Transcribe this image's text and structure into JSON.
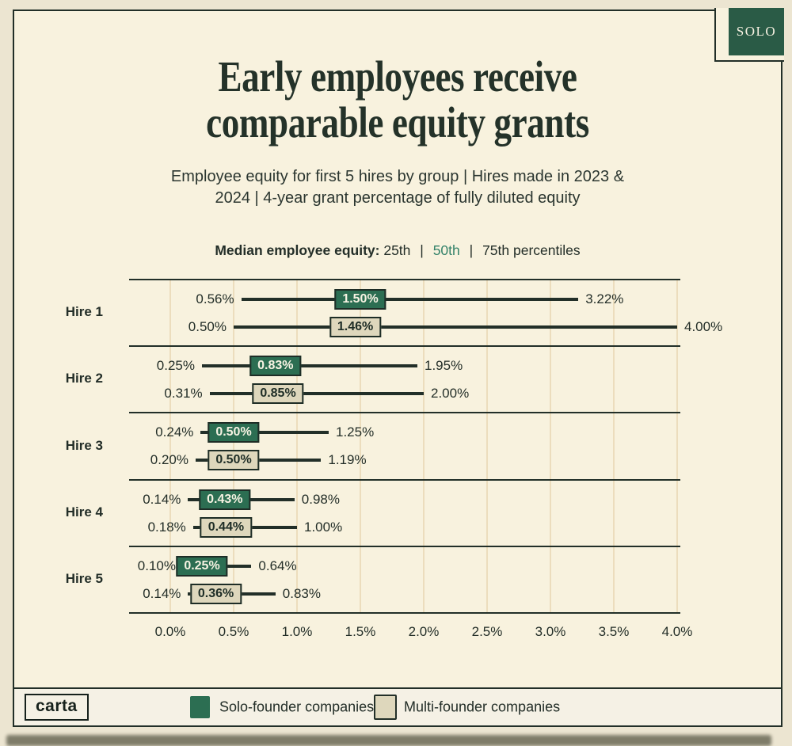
{
  "badge": {
    "label": "SOLO"
  },
  "header": {
    "title": "Early employees receive\ncomparable equity grants",
    "subtitle": "Employee equity for first 5 hires by group | Hires made in 2023 &\n2024 | 4-year grant percentage of fully diluted equity"
  },
  "percentile_note": {
    "label": "Median employee equity:",
    "p25": "25th",
    "p50": "50th",
    "p75": "75th percentiles",
    "separator": "|"
  },
  "chart_data": {
    "type": "horizontal percentile range chart (25th–50th–75th)",
    "xlim": [
      0,
      4
    ],
    "x_tick_labels": [
      "0.0%",
      "0.5%",
      "1.0%",
      "1.5%",
      "2.0%",
      "2.5%",
      "3.0%",
      "3.5%",
      "4.0%"
    ],
    "grid": "faint vertical gridlines every 0.5%",
    "series_names": [
      "Solo-founder companies",
      "Multi-founder companies"
    ],
    "groups": [
      {
        "label": "Hire 1",
        "rows": [
          {
            "series": "solo",
            "p25": 0.56,
            "p50": 1.5,
            "p75": 3.22,
            "labels": {
              "p25": "0.56%",
              "p50": "1.50%",
              "p75": "3.22%"
            }
          },
          {
            "series": "multi",
            "p25": 0.5,
            "p50": 1.46,
            "p75": 4.0,
            "labels": {
              "p25": "0.50%",
              "p50": "1.46%",
              "p75": "4.00%"
            }
          }
        ]
      },
      {
        "label": "Hire 2",
        "rows": [
          {
            "series": "solo",
            "p25": 0.25,
            "p50": 0.83,
            "p75": 1.95,
            "labels": {
              "p25": "0.25%",
              "p50": "0.83%",
              "p75": "1.95%"
            }
          },
          {
            "series": "multi",
            "p25": 0.31,
            "p50": 0.85,
            "p75": 2.0,
            "labels": {
              "p25": "0.31%",
              "p50": "0.85%",
              "p75": "2.00%"
            }
          }
        ]
      },
      {
        "label": "Hire 3",
        "rows": [
          {
            "series": "solo",
            "p25": 0.24,
            "p50": 0.5,
            "p75": 1.25,
            "labels": {
              "p25": "0.24%",
              "p50": "0.50%",
              "p75": "1.25%"
            }
          },
          {
            "series": "multi",
            "p25": 0.2,
            "p50": 0.5,
            "p75": 1.19,
            "labels": {
              "p25": "0.20%",
              "p50": "0.50%",
              "p75": "1.19%"
            }
          }
        ]
      },
      {
        "label": "Hire 4",
        "rows": [
          {
            "series": "solo",
            "p25": 0.14,
            "p50": 0.43,
            "p75": 0.98,
            "labels": {
              "p25": "0.14%",
              "p50": "0.43%",
              "p75": "0.98%"
            }
          },
          {
            "series": "multi",
            "p25": 0.18,
            "p50": 0.44,
            "p75": 1.0,
            "labels": {
              "p25": "0.18%",
              "p50": "0.44%",
              "p75": "1.00%"
            }
          }
        ]
      },
      {
        "label": "Hire 5",
        "rows": [
          {
            "series": "solo",
            "p25": 0.1,
            "p50": 0.25,
            "p75": 0.64,
            "labels": {
              "p25": "0.10%",
              "p50": "0.25%",
              "p75": "0.64%"
            }
          },
          {
            "series": "multi",
            "p25": 0.14,
            "p50": 0.36,
            "p75": 0.83,
            "labels": {
              "p25": "0.14%",
              "p50": "0.36%",
              "p75": "0.83%"
            }
          }
        ]
      }
    ]
  },
  "legend": {
    "items": [
      {
        "label": "Solo-founder companies",
        "color": "#2c6e52"
      },
      {
        "label": "Multi-founder companies",
        "color": "#ded7bc"
      }
    ]
  },
  "logo": {
    "label": "carta"
  },
  "colors": {
    "page_bg": "#ece5d1",
    "card_bg": "#f8f2de",
    "footer_bg": "#f5f1e5",
    "dark": "#222f28",
    "solo_green": "#2c6e52",
    "badge_green": "#2a5b46",
    "multi_beige": "#ded7bc",
    "note_green": "#35836a",
    "gridline": "#ecddbd"
  }
}
